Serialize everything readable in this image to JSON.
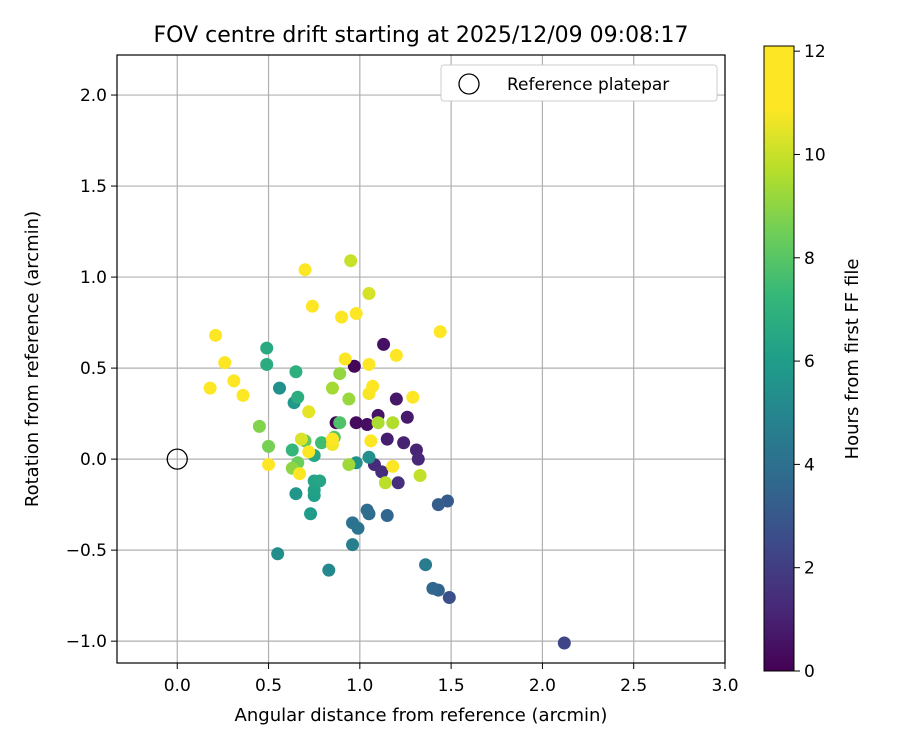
{
  "chart_data": {
    "type": "scatter",
    "title": "FOV centre drift starting at 2025/12/09 09:08:17",
    "xlabel": "Angular distance from reference (arcmin)",
    "ylabel": "Rotation from reference (arcmin)",
    "xlim": [
      -0.33,
      3.0
    ],
    "ylim": [
      -1.12,
      2.22
    ],
    "xticks": [
      0.0,
      0.5,
      1.0,
      1.5,
      2.0,
      2.5,
      3.0
    ],
    "xtick_labels": [
      "0.0",
      "0.5",
      "1.0",
      "1.5",
      "2.0",
      "2.5",
      "3.0"
    ],
    "yticks": [
      -1.0,
      -0.5,
      0.0,
      0.5,
      1.0,
      1.5,
      2.0
    ],
    "ytick_labels": [
      "−1.0",
      "−0.5",
      "0.0",
      "0.5",
      "1.0",
      "1.5",
      "2.0"
    ],
    "grid": true,
    "legend": {
      "position": "top-right",
      "entries": [
        "Reference platepar"
      ]
    },
    "reference_point": {
      "x": 0.0,
      "y": 0.0,
      "label": "Reference platepar"
    },
    "colorbar": {
      "label": "Hours from first FF file",
      "min": 0,
      "max": 12.1,
      "ticks": [
        0,
        2,
        4,
        6,
        8,
        10,
        12
      ],
      "tick_labels": [
        "0",
        "2",
        "4",
        "6",
        "8",
        "10",
        "12"
      ],
      "colormap": "viridis"
    },
    "points": [
      {
        "x": 0.87,
        "y": 0.2,
        "h": 0.1
      },
      {
        "x": 0.97,
        "y": 0.51,
        "h": 0.2
      },
      {
        "x": 0.98,
        "y": 0.2,
        "h": 0.3
      },
      {
        "x": 1.04,
        "y": 0.19,
        "h": 0.4
      },
      {
        "x": 1.13,
        "y": 0.63,
        "h": 0.5
      },
      {
        "x": 1.1,
        "y": 0.24,
        "h": 0.6
      },
      {
        "x": 1.2,
        "y": 0.33,
        "h": 0.7
      },
      {
        "x": 1.26,
        "y": 0.23,
        "h": 0.8
      },
      {
        "x": 1.15,
        "y": 0.11,
        "h": 0.9
      },
      {
        "x": 1.24,
        "y": 0.09,
        "h": 1.0
      },
      {
        "x": 1.31,
        "y": 0.05,
        "h": 1.1
      },
      {
        "x": 1.32,
        "y": 0.0,
        "h": 1.2
      },
      {
        "x": 1.08,
        "y": -0.03,
        "h": 1.3
      },
      {
        "x": 1.12,
        "y": -0.07,
        "h": 1.4
      },
      {
        "x": 1.21,
        "y": -0.13,
        "h": 1.5
      },
      {
        "x": 2.12,
        "y": -1.01,
        "h": 2.3
      },
      {
        "x": 1.49,
        "y": -0.76,
        "h": 2.7
      },
      {
        "x": 1.48,
        "y": -0.23,
        "h": 3.1
      },
      {
        "x": 1.43,
        "y": -0.25,
        "h": 3.2
      },
      {
        "x": 1.43,
        "y": -0.72,
        "h": 3.4
      },
      {
        "x": 1.4,
        "y": -0.71,
        "h": 3.6
      },
      {
        "x": 1.15,
        "y": -0.31,
        "h": 3.6
      },
      {
        "x": 1.05,
        "y": -0.3,
        "h": 3.8
      },
      {
        "x": 1.04,
        "y": -0.28,
        "h": 3.9
      },
      {
        "x": 0.96,
        "y": -0.35,
        "h": 4.1
      },
      {
        "x": 0.99,
        "y": -0.38,
        "h": 4.2
      },
      {
        "x": 1.36,
        "y": -0.58,
        "h": 4.5
      },
      {
        "x": 0.96,
        "y": -0.47,
        "h": 4.7
      },
      {
        "x": 0.83,
        "y": -0.61,
        "h": 5.1
      },
      {
        "x": 0.55,
        "y": -0.52,
        "h": 5.3
      },
      {
        "x": 1.05,
        "y": 0.01,
        "h": 5.4
      },
      {
        "x": 0.98,
        "y": -0.02,
        "h": 5.5
      },
      {
        "x": 0.56,
        "y": 0.39,
        "h": 5.5
      },
      {
        "x": 0.65,
        "y": -0.19,
        "h": 5.7
      },
      {
        "x": 0.64,
        "y": 0.31,
        "h": 5.8
      },
      {
        "x": 0.73,
        "y": -0.3,
        "h": 6.0
      },
      {
        "x": 0.75,
        "y": -0.2,
        "h": 6.1
      },
      {
        "x": 0.75,
        "y": -0.17,
        "h": 6.2
      },
      {
        "x": 0.75,
        "y": -0.12,
        "h": 6.3
      },
      {
        "x": 0.78,
        "y": -0.12,
        "h": 6.4
      },
      {
        "x": 0.75,
        "y": 0.02,
        "h": 6.5
      },
      {
        "x": 0.49,
        "y": 0.61,
        "h": 6.6
      },
      {
        "x": 0.49,
        "y": 0.52,
        "h": 6.7
      },
      {
        "x": 0.66,
        "y": 0.34,
        "h": 6.8
      },
      {
        "x": 0.65,
        "y": 0.48,
        "h": 6.9
      },
      {
        "x": 0.63,
        "y": 0.05,
        "h": 7.2
      },
      {
        "x": 0.79,
        "y": 0.09,
        "h": 7.5
      },
      {
        "x": 0.89,
        "y": 0.2,
        "h": 7.8
      },
      {
        "x": 0.86,
        "y": 0.12,
        "h": 8.0
      },
      {
        "x": 0.7,
        "y": 0.1,
        "h": 8.2
      },
      {
        "x": 0.66,
        "y": -0.02,
        "h": 8.4
      },
      {
        "x": 0.5,
        "y": 0.07,
        "h": 8.6
      },
      {
        "x": 0.45,
        "y": 0.18,
        "h": 8.8
      },
      {
        "x": 0.63,
        "y": -0.05,
        "h": 9.0
      },
      {
        "x": 0.89,
        "y": 0.47,
        "h": 9.1
      },
      {
        "x": 0.94,
        "y": 0.33,
        "h": 9.2
      },
      {
        "x": 0.94,
        "y": -0.03,
        "h": 9.3
      },
      {
        "x": 0.85,
        "y": 0.39,
        "h": 9.4
      },
      {
        "x": 1.1,
        "y": 0.2,
        "h": 9.5
      },
      {
        "x": 1.18,
        "y": 0.2,
        "h": 9.6
      },
      {
        "x": 1.14,
        "y": -0.13,
        "h": 9.8
      },
      {
        "x": 1.33,
        "y": -0.09,
        "h": 9.9
      },
      {
        "x": 0.95,
        "y": 1.09,
        "h": 10.0
      },
      {
        "x": 1.05,
        "y": 0.91,
        "h": 10.2
      },
      {
        "x": 0.68,
        "y": 0.11,
        "h": 10.3
      },
      {
        "x": 0.72,
        "y": 0.26,
        "h": 10.5
      },
      {
        "x": 0.85,
        "y": 0.08,
        "h": 10.7
      },
      {
        "x": 1.05,
        "y": 0.36,
        "h": 10.8
      },
      {
        "x": 1.44,
        "y": 0.7,
        "h": 11.0
      },
      {
        "x": 0.92,
        "y": 0.55,
        "h": 11.2
      },
      {
        "x": 0.9,
        "y": 0.78,
        "h": 11.3
      },
      {
        "x": 1.07,
        "y": 0.4,
        "h": 11.4
      },
      {
        "x": 1.18,
        "y": -0.04,
        "h": 11.5
      },
      {
        "x": 1.06,
        "y": 0.1,
        "h": 11.6
      },
      {
        "x": 0.85,
        "y": 0.11,
        "h": 11.7
      },
      {
        "x": 0.72,
        "y": 0.04,
        "h": 11.7
      },
      {
        "x": 0.67,
        "y": -0.08,
        "h": 11.8
      },
      {
        "x": 0.5,
        "y": -0.03,
        "h": 11.9
      },
      {
        "x": 0.98,
        "y": 0.8,
        "h": 12.0
      },
      {
        "x": 0.74,
        "y": 0.84,
        "h": 12.0
      },
      {
        "x": 0.7,
        "y": 1.04,
        "h": 12.0
      },
      {
        "x": 1.05,
        "y": 0.52,
        "h": 12.0
      },
      {
        "x": 1.2,
        "y": 0.57,
        "h": 12.0
      },
      {
        "x": 1.29,
        "y": 0.34,
        "h": 12.0
      },
      {
        "x": 0.21,
        "y": 0.68,
        "h": 12.1
      },
      {
        "x": 0.26,
        "y": 0.53,
        "h": 12.1
      },
      {
        "x": 0.31,
        "y": 0.43,
        "h": 12.1
      },
      {
        "x": 0.18,
        "y": 0.39,
        "h": 12.1
      },
      {
        "x": 0.36,
        "y": 0.35,
        "h": 12.1
      }
    ]
  }
}
